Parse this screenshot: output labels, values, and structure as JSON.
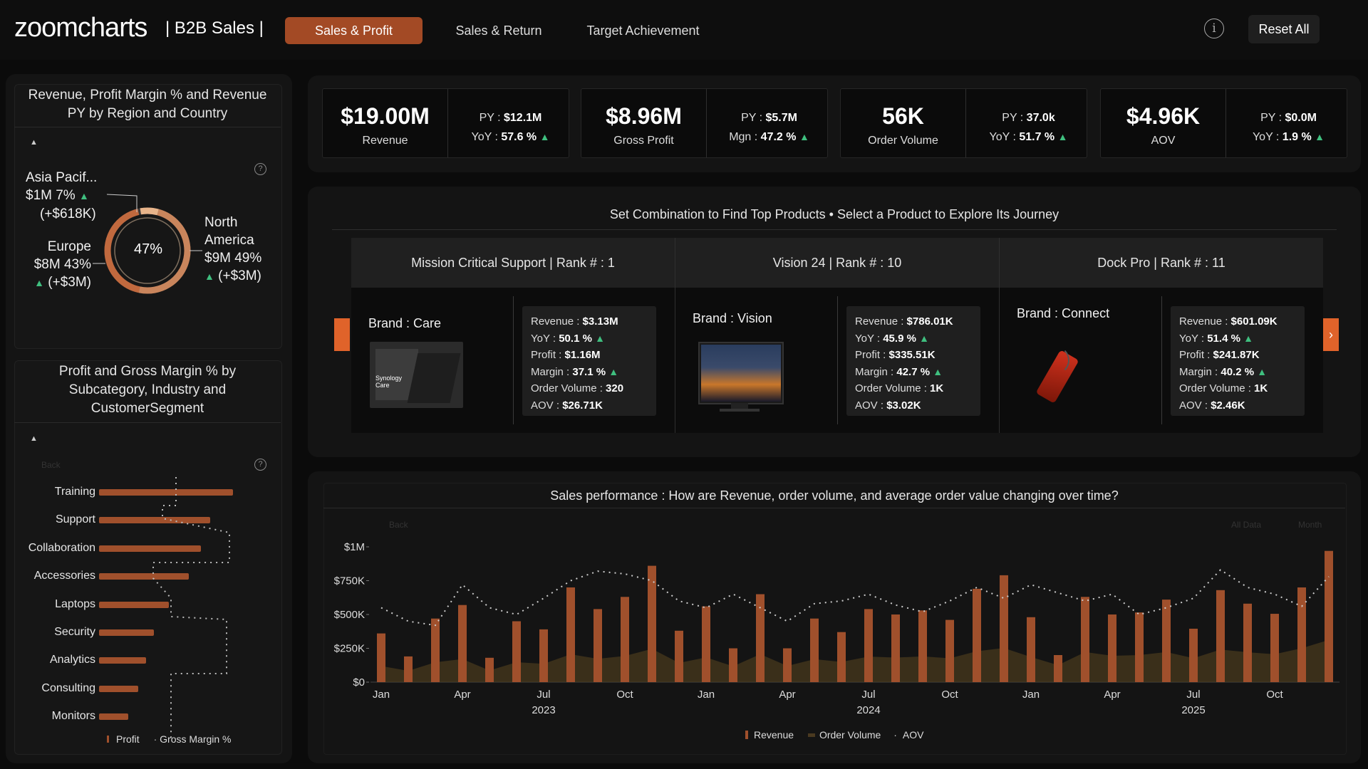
{
  "header": {
    "logo_text": "zoomcharts",
    "title": "| B2B Sales |",
    "tabs": [
      {
        "label": "Sales & Profit",
        "active": true
      },
      {
        "label": "Sales & Return",
        "active": false
      },
      {
        "label": "Target Achievement",
        "active": false
      }
    ],
    "info_icon": "info-icon",
    "reset_label": "Reset All"
  },
  "kpis": [
    {
      "value": "$19.00M",
      "label": "Revenue",
      "line1_prefix": "PY : ",
      "line1_value": "$12.1M",
      "line2_prefix": "YoY : ",
      "line2_value": "57.6 %"
    },
    {
      "value": "$8.96M",
      "label": "Gross Profit",
      "line1_prefix": "PY : ",
      "line1_value": "$5.7M",
      "line2_prefix": "Mgn : ",
      "line2_value": "47.2 %"
    },
    {
      "value": "56K",
      "label": "Order Volume",
      "line1_prefix": "PY : ",
      "line1_value": "37.0k",
      "line2_prefix": "YoY : ",
      "line2_value": "51.7 %"
    },
    {
      "value": "$4.96K",
      "label": "AOV",
      "line1_prefix": "PY : ",
      "line1_value": "$0.0M",
      "line2_prefix": "YoY : ",
      "line2_value": "1.9 %"
    }
  ],
  "region": {
    "title": "Revenue, Profit Margin % and Revenue PY by Region and Country",
    "center": "47%",
    "asia": {
      "name": "Asia Pacif...",
      "value": "$1M 7%",
      "delta": "(+$618K)"
    },
    "europe": {
      "name": "Europe",
      "value": "$8M 43%",
      "delta": "(+$3M)"
    },
    "na": {
      "name1": "North",
      "name2": "America",
      "value": "$9M 49%",
      "delta": "(+$3M)"
    },
    "shares": [
      0.07,
      0.43,
      0.49
    ]
  },
  "subcat": {
    "title": "Profit and Gross Margin % by Subcategory, Industry and CustomerSegment",
    "back": "Back",
    "legend": [
      "Profit",
      "Gross Margin %"
    ],
    "categories": [
      "Training",
      "Support",
      "Collaboration",
      "Accessories",
      "Laptops",
      "Security",
      "Analytics",
      "Consulting",
      "Monitors"
    ],
    "profit_rel": [
      1.0,
      0.83,
      0.76,
      0.67,
      0.52,
      0.41,
      0.35,
      0.29,
      0.22
    ]
  },
  "products": {
    "title": "Set Combination to Find Top Products • Select a Product to Explore Its Journey",
    "items": [
      {
        "head": "Mission Critical Support | Rank # : 1",
        "brand": "Brand : Care",
        "stats": {
          "revenue": "$3.13M",
          "yoy": "50.1 %",
          "profit": "$1.16M",
          "margin": "37.1 %",
          "orders": "320",
          "aov": "$26.71K"
        },
        "thumb_lines": [
          "Synology",
          "Care"
        ]
      },
      {
        "head": "Vision 24 | Rank # : 10",
        "brand": "Brand : Vision",
        "stats": {
          "revenue": "$786.01K",
          "yoy": "45.9 %",
          "profit": "$335.51K",
          "margin": "42.7 %",
          "orders": "1K",
          "aov": "$3.02K"
        }
      },
      {
        "head": "Dock Pro | Rank # : 11",
        "brand": "Brand : Connect",
        "stats": {
          "revenue": "$601.09K",
          "yoy": "51.4 %",
          "profit": "$241.87K",
          "margin": "40.2 %",
          "orders": "1K",
          "aov": "$2.46K"
        }
      }
    ],
    "stat_labels": {
      "revenue": "Revenue : ",
      "yoy": "YoY : ",
      "profit": "Profit : ",
      "margin": "Margin : ",
      "orders": "Order Volume : ",
      "aov": "AOV : "
    }
  },
  "sales": {
    "title": "Sales performance : How are Revenue, order volume, and average order value changing over time?",
    "back": "Back",
    "all_data": "All Data",
    "month": "Month",
    "legend": [
      "Revenue",
      "Order Volume",
      "AOV"
    ]
  },
  "chart_data": {
    "type": "bar",
    "x": [
      "2023-01",
      "2023-02",
      "2023-03",
      "2023-04",
      "2023-05",
      "2023-06",
      "2023-07",
      "2023-08",
      "2023-09",
      "2023-10",
      "2023-11",
      "2023-12",
      "2024-01",
      "2024-02",
      "2024-03",
      "2024-04",
      "2024-05",
      "2024-06",
      "2024-07",
      "2024-08",
      "2024-09",
      "2024-10",
      "2024-11",
      "2024-12",
      "2025-01",
      "2025-02",
      "2025-03",
      "2025-04",
      "2025-05",
      "2025-06",
      "2025-07",
      "2025-08",
      "2025-09",
      "2025-10",
      "2025-11",
      "2025-12"
    ],
    "x_tick_labels": [
      "Jan",
      "Apr",
      "Jul",
      "Oct",
      "Jan",
      "Apr",
      "Jul",
      "Oct",
      "Jan",
      "Apr",
      "Jul",
      "Oct"
    ],
    "year_labels": [
      "2023",
      "2024",
      "2025"
    ],
    "y_tick_labels": [
      "$1M",
      "$750K",
      "$500K",
      "$250K",
      "$0"
    ],
    "ylim": [
      0,
      1000000
    ],
    "series": [
      {
        "name": "Revenue",
        "type": "bar",
        "values": [
          360000,
          190000,
          470000,
          570000,
          180000,
          450000,
          390000,
          700000,
          540000,
          630000,
          860000,
          380000,
          560000,
          250000,
          650000,
          250000,
          470000,
          370000,
          540000,
          500000,
          530000,
          460000,
          690000,
          790000,
          480000,
          200000,
          630000,
          500000,
          515000,
          610000,
          395000,
          680000,
          580000,
          505000,
          700000,
          970000
        ]
      },
      {
        "name": "Order Volume",
        "type": "area"
      },
      {
        "name": "AOV",
        "type": "line"
      }
    ]
  }
}
